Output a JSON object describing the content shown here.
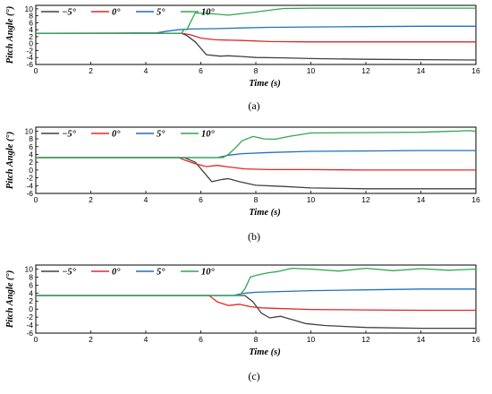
{
  "colors": {
    "m5": "#404040",
    "z0": "#e02828",
    "p5": "#1f6fc4",
    "p10": "#2fa84f"
  },
  "chart_data": [
    {
      "type": "line",
      "caption": "(a)",
      "xlabel": "Time (s)",
      "ylabel": "Pitch Angle (°)",
      "xlim": [
        0,
        16
      ],
      "ylim": [
        -6,
        11
      ],
      "xticks": [
        0,
        2,
        4,
        6,
        8,
        10,
        12,
        14,
        16
      ],
      "yticks": [
        -6,
        -4,
        -2,
        0,
        2,
        4,
        6,
        8,
        10
      ],
      "legend_position": "top-left",
      "series": [
        {
          "name": "−5°",
          "color": "#404040",
          "x": [
            0,
            5.3,
            5.5,
            5.8,
            6.2,
            6.7,
            7.0,
            7.5,
            8.0,
            9,
            10,
            12,
            14,
            16
          ],
          "y": [
            3,
            3,
            2.3,
            0.5,
            -3.2,
            -3.6,
            -3.5,
            -3.7,
            -4.0,
            -4.1,
            -4.3,
            -4.5,
            -4.6,
            -4.7
          ]
        },
        {
          "name": "0°",
          "color": "#e02828",
          "x": [
            0,
            5.3,
            5.6,
            6.0,
            6.5,
            7.5,
            8.5,
            10,
            12,
            14,
            16
          ],
          "y": [
            3,
            3,
            2.6,
            1.6,
            1.1,
            0.9,
            0.6,
            0.5,
            0.5,
            0.5,
            0.5
          ]
        },
        {
          "name": "5°",
          "color": "#1f6fc4",
          "x": [
            0,
            4.4,
            4.8,
            5.2,
            5.6,
            6.5,
            7.5,
            8.5,
            10,
            12,
            14,
            16
          ],
          "y": [
            3,
            3.1,
            3.6,
            4.0,
            4.2,
            4.3,
            4.5,
            4.7,
            4.8,
            4.9,
            5.0,
            5.0
          ]
        },
        {
          "name": "10°",
          "color": "#2fa84f",
          "x": [
            0,
            5.3,
            5.4,
            5.5,
            5.6,
            5.8,
            6.2,
            7.0,
            8.0,
            8.6,
            9,
            10,
            12,
            14,
            16
          ],
          "y": [
            3,
            3,
            4.2,
            4.0,
            5.8,
            8.8,
            8.7,
            8.2,
            9.1,
            9.7,
            10.1,
            10.2,
            10.2,
            10.2,
            10.2
          ]
        }
      ]
    },
    {
      "type": "line",
      "caption": "(b)",
      "xlabel": "Time (s)",
      "ylabel": "Pitch Angle (°)",
      "xlim": [
        0,
        16
      ],
      "ylim": [
        -6,
        11
      ],
      "xticks": [
        0,
        2,
        4,
        6,
        8,
        10,
        12,
        14,
        16
      ],
      "yticks": [
        -6,
        -4,
        -2,
        0,
        2,
        4,
        6,
        8,
        10
      ],
      "legend_position": "top-left",
      "series": [
        {
          "name": "−5°",
          "color": "#404040",
          "x": [
            0,
            5.4,
            5.8,
            6.1,
            6.4,
            6.8,
            7.0,
            7.4,
            8.0,
            9,
            10,
            12,
            14,
            16
          ],
          "y": [
            3.2,
            3.2,
            2.0,
            -0.5,
            -3.0,
            -2.4,
            -2.2,
            -3.0,
            -3.9,
            -4.2,
            -4.6,
            -4.8,
            -4.8,
            -4.8
          ]
        },
        {
          "name": "0°",
          "color": "#e02828",
          "x": [
            0,
            5.2,
            5.4,
            5.8,
            6.2,
            6.6,
            7.0,
            7.6,
            8.5,
            10,
            12,
            14,
            16
          ],
          "y": [
            3.2,
            3.2,
            2.6,
            1.6,
            0.9,
            1.2,
            0.8,
            0.3,
            0.1,
            0.1,
            0.0,
            0.0,
            0.0
          ]
        },
        {
          "name": "5°",
          "color": "#1f6fc4",
          "x": [
            0,
            6.6,
            7.0,
            7.5,
            8.5,
            10,
            12,
            14,
            16
          ],
          "y": [
            3.2,
            3.2,
            3.8,
            4.2,
            4.5,
            4.8,
            4.9,
            5.0,
            5.0
          ]
        },
        {
          "name": "10°",
          "color": "#2fa84f",
          "x": [
            0,
            6.8,
            7.0,
            7.3,
            7.5,
            7.9,
            8.3,
            8.7,
            9.2,
            10,
            12,
            14,
            15.8,
            16
          ],
          "y": [
            3.2,
            3.2,
            4.0,
            6.0,
            7.5,
            8.6,
            8.0,
            7.9,
            8.6,
            9.5,
            9.6,
            9.7,
            10.1,
            9.9
          ]
        }
      ]
    },
    {
      "type": "line",
      "caption": "(c)",
      "xlabel": "Time (s)",
      "ylabel": "Pitch Angle (°)",
      "xlim": [
        0,
        16
      ],
      "ylim": [
        -6,
        11
      ],
      "xticks": [
        0,
        2,
        4,
        6,
        8,
        10,
        12,
        14,
        16
      ],
      "yticks": [
        -6,
        -4,
        -2,
        0,
        2,
        4,
        6,
        8,
        10
      ],
      "legend_position": "top-left",
      "series": [
        {
          "name": "−5°",
          "color": "#404040",
          "x": [
            0,
            7.6,
            7.9,
            8.2,
            8.5,
            8.9,
            9.3,
            9.8,
            10.5,
            12,
            14,
            16
          ],
          "y": [
            3.4,
            3.4,
            1.8,
            -1.0,
            -2.2,
            -1.8,
            -2.6,
            -3.6,
            -4.1,
            -4.6,
            -4.8,
            -4.8
          ]
        },
        {
          "name": "0°",
          "color": "#e02828",
          "x": [
            0,
            6.3,
            6.6,
            7.0,
            7.4,
            7.8,
            8.2,
            9.0,
            10,
            12,
            14,
            16
          ],
          "y": [
            3.4,
            3.4,
            1.8,
            0.9,
            1.2,
            0.6,
            0.3,
            0.1,
            -0.1,
            -0.2,
            -0.3,
            -0.3
          ]
        },
        {
          "name": "5°",
          "color": "#1f6fc4",
          "x": [
            0,
            7.2,
            7.5,
            8.0,
            9.0,
            10,
            12,
            14,
            16
          ],
          "y": [
            3.4,
            3.4,
            3.9,
            4.2,
            4.4,
            4.6,
            4.8,
            5.0,
            5.0
          ]
        },
        {
          "name": "10°",
          "color": "#2fa84f",
          "x": [
            0,
            7.4,
            7.6,
            7.8,
            8.0,
            8.4,
            8.8,
            9.3,
            10,
            11,
            12,
            13,
            14,
            15,
            16
          ],
          "y": [
            3.4,
            3.4,
            5.0,
            8.0,
            8.4,
            9.0,
            9.4,
            10.2,
            10.0,
            9.5,
            10.2,
            9.6,
            10.1,
            9.7,
            10.0
          ]
        }
      ]
    }
  ]
}
